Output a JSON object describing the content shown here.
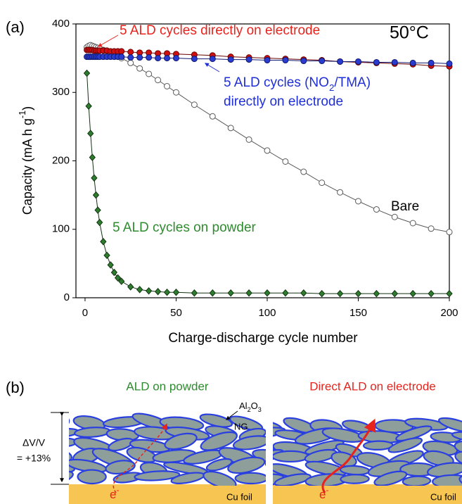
{
  "chart_data": {
    "type": "scatter",
    "panel_label": "(a)",
    "temperature": "50°C",
    "xlabel": "Charge-discharge cycle number",
    "ylabel": [
      "Capacity (mA h g",
      "-1",
      ")"
    ],
    "xlim": [
      -5,
      200
    ],
    "ylim": [
      0,
      400
    ],
    "xticks": [
      0,
      50,
      100,
      150,
      200
    ],
    "yticks": [
      0,
      100,
      200,
      300,
      400
    ],
    "x": [
      1,
      2,
      3,
      4,
      5,
      6,
      7,
      8,
      10,
      12,
      14,
      16,
      18,
      20,
      25,
      30,
      35,
      40,
      45,
      50,
      60,
      70,
      80,
      90,
      100,
      110,
      120,
      130,
      140,
      150,
      160,
      170,
      180,
      190,
      200
    ],
    "series": [
      {
        "name": "Bare",
        "color": "#ffffff",
        "edge": "#5a5a5a",
        "label_color": "#000000",
        "marker": "circle",
        "values": [
          366,
          368,
          369,
          368,
          367,
          366,
          365,
          364,
          362,
          360,
          358,
          356,
          353,
          350,
          343,
          335,
          327,
          318,
          309,
          300,
          282,
          265,
          248,
          231,
          215,
          199,
          184,
          168,
          154,
          141,
          129,
          118,
          109,
          101,
          96
        ]
      },
      {
        "name": "5 ALD cycles on powder",
        "color": "#2e7d2e",
        "edge": "#123312",
        "label_color": "#2e8b2e",
        "marker": "diamond",
        "values": [
          328,
          280,
          240,
          205,
          175,
          150,
          128,
          110,
          82,
          62,
          48,
          37,
          29,
          24,
          16,
          12,
          10,
          9,
          8,
          8,
          7,
          7,
          7,
          7,
          7,
          7,
          7,
          6,
          6,
          6,
          6,
          6,
          6,
          6,
          6
        ]
      },
      {
        "name": "5 ALD cycles directly on electrode",
        "color": "#d01010",
        "edge": "#6a0000",
        "label_color": "#e8231c",
        "marker": "circle",
        "values": [
          362,
          362,
          362,
          362,
          361,
          361,
          361,
          361,
          361,
          361,
          360,
          360,
          360,
          360,
          359,
          358,
          358,
          357,
          357,
          356,
          355,
          354,
          352,
          351,
          350,
          349,
          348,
          347,
          345,
          344,
          343,
          342,
          341,
          339,
          338
        ]
      },
      {
        "name": [
          "5 ALD cycles (NO",
          "2",
          "/TMA)"
        ],
        "name_line2": "directly on electrode",
        "color": "#2a3cd0",
        "edge": "#101a70",
        "label_color": "#1f2fd6",
        "marker": "circle",
        "values": [
          352,
          352,
          352,
          352,
          352,
          352,
          352,
          352,
          352,
          352,
          352,
          352,
          352,
          352,
          351,
          351,
          351,
          350,
          350,
          350,
          349,
          349,
          348,
          348,
          347,
          347,
          346,
          346,
          345,
          345,
          344,
          344,
          343,
          343,
          342
        ]
      }
    ]
  },
  "diagram": {
    "panel_label": "(b)",
    "left_title": "ALD on powder",
    "right_title": "Direct ALD on electrode",
    "coating": [
      "Al",
      "2",
      "O",
      "3"
    ],
    "particle": "NG",
    "volume_change": "ΔV/V",
    "volume_value": "= +13%",
    "electron_left": [
      "e",
      "-"
    ],
    "electron_right": [
      "e",
      "-"
    ],
    "foil_left": "Cu foil",
    "foil_right": "Cu foil"
  }
}
